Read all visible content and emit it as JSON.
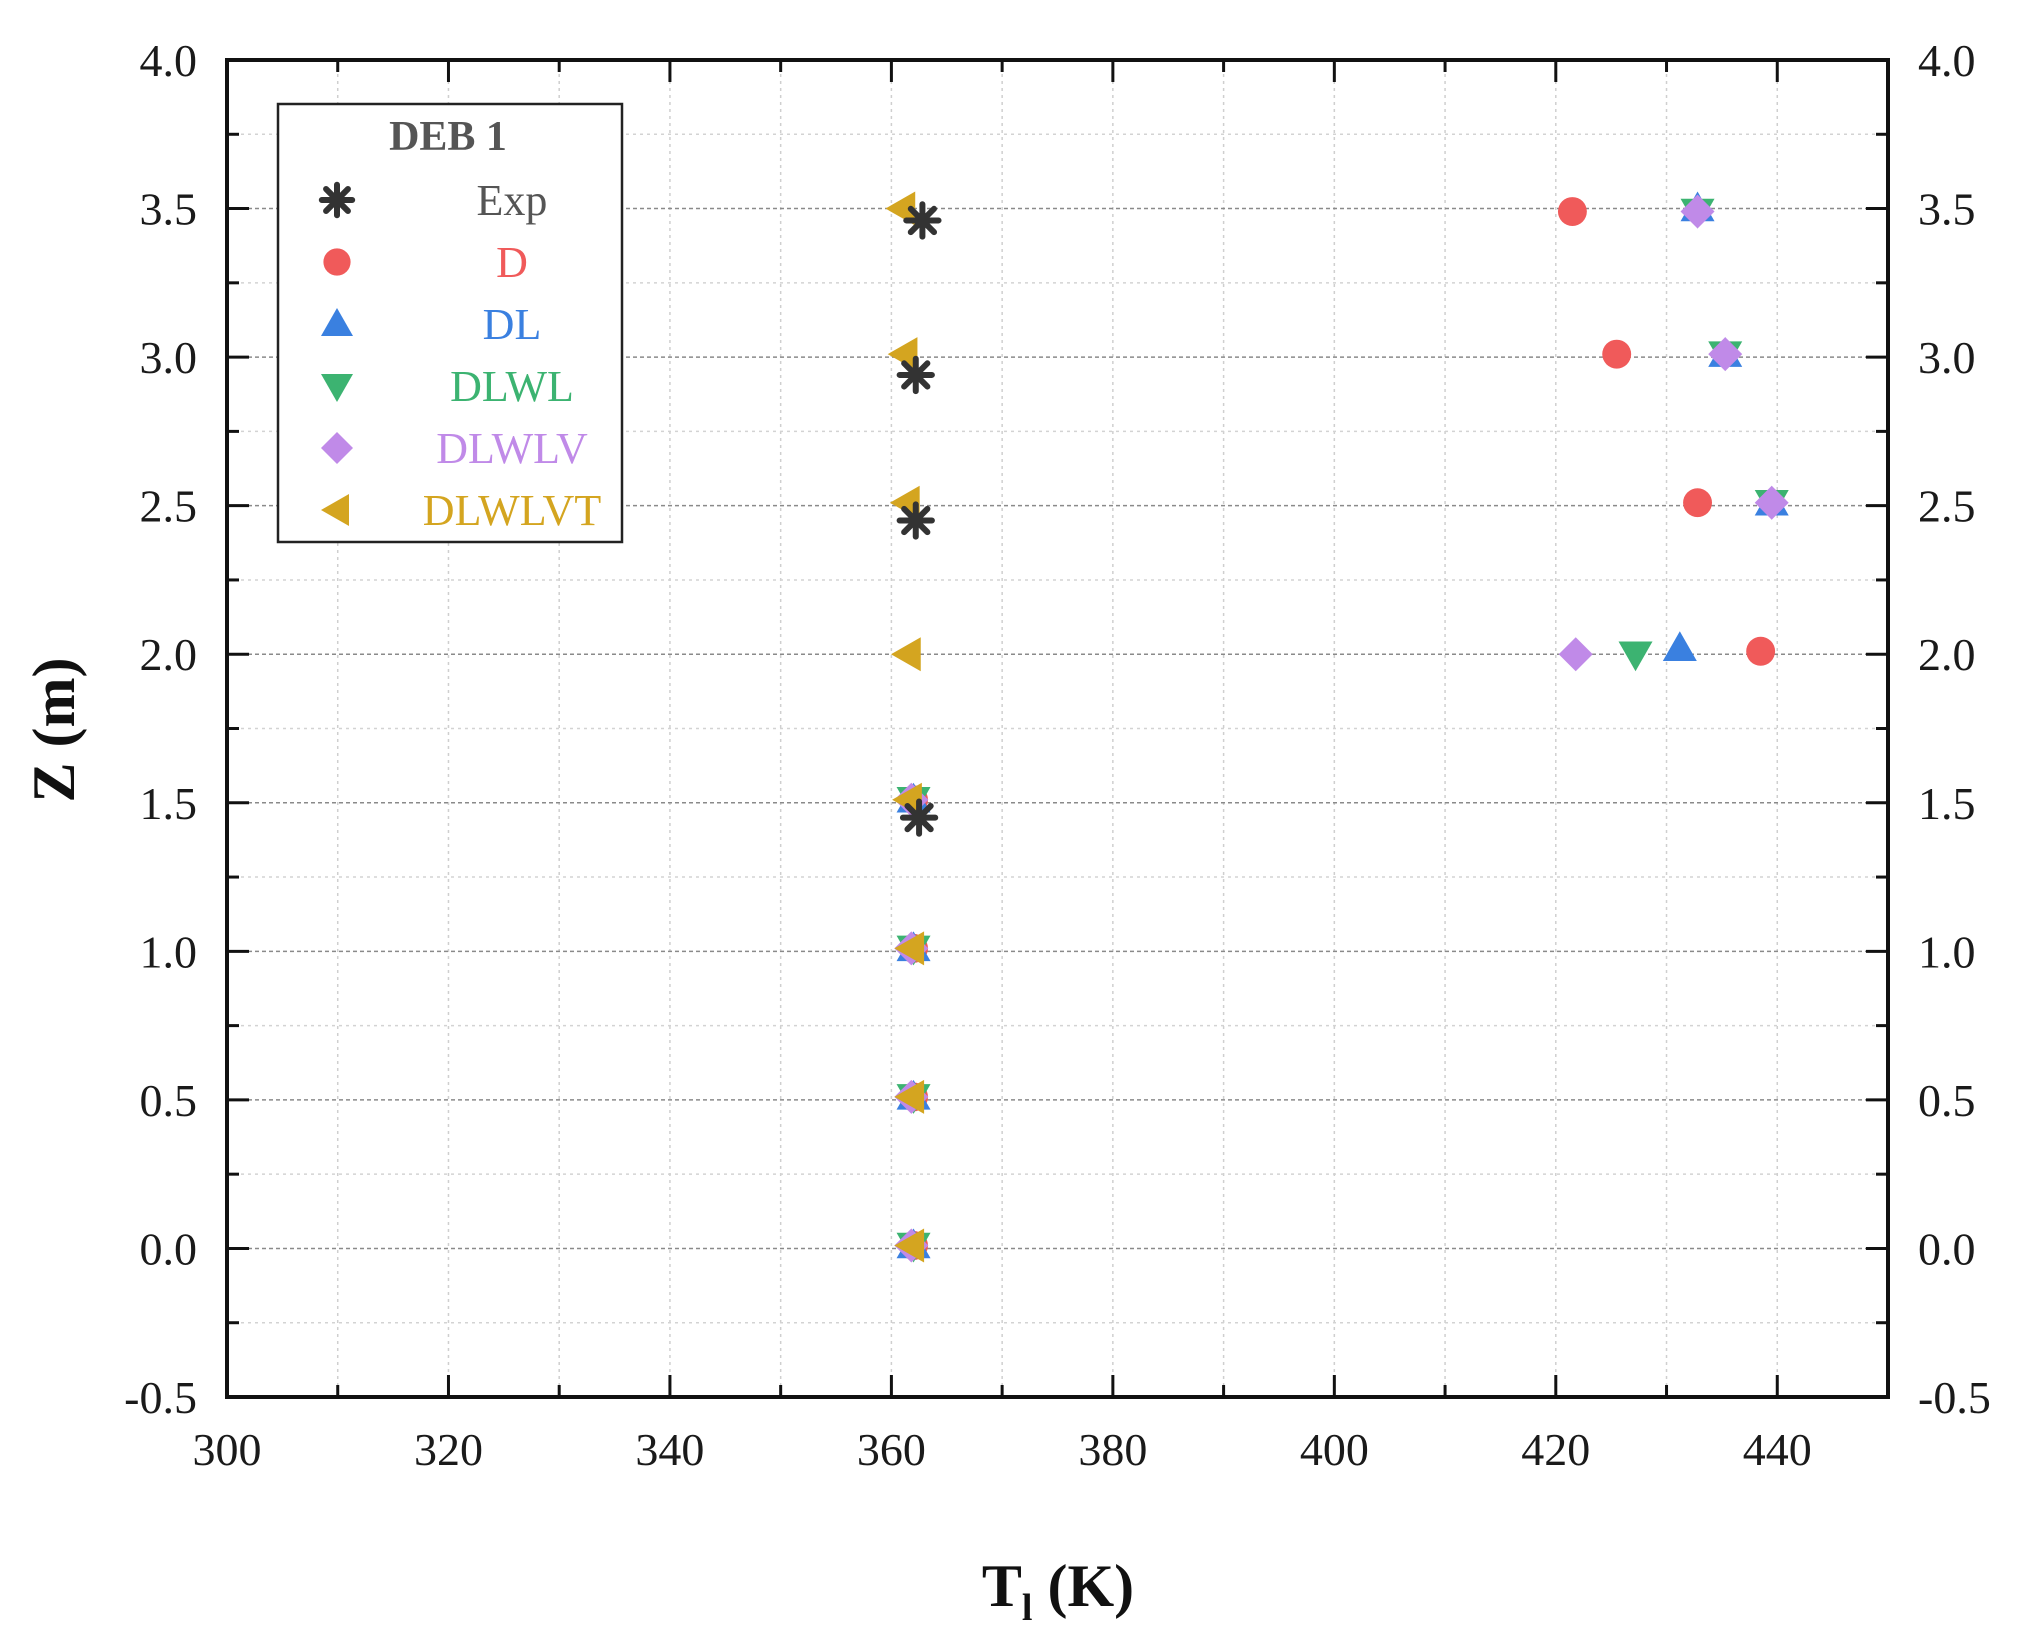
{
  "chart_data": {
    "type": "scatter",
    "title": "",
    "xlabel_main": "T",
    "xlabel_sub": "l",
    "xlabel_unit": " (K)",
    "ylabel": "Z (m)",
    "xlim": [
      300,
      450
    ],
    "ylim": [
      -0.5,
      4.0
    ],
    "x_ticks": [
      "300",
      "320",
      "340",
      "360",
      "380",
      "400",
      "420",
      "440"
    ],
    "x_tick_values": [
      300,
      320,
      340,
      360,
      380,
      400,
      420,
      440
    ],
    "y_ticks": [
      "-0.5",
      "0.0",
      "0.5",
      "1.0",
      "1.5",
      "2.0",
      "2.5",
      "3.0",
      "3.5",
      "4.0"
    ],
    "y_tick_values": [
      -0.5,
      0.0,
      0.5,
      1.0,
      1.5,
      2.0,
      2.5,
      3.0,
      3.5,
      4.0
    ],
    "grid": true,
    "legend_position": "top-left",
    "legend_title": "DEB 1",
    "series": [
      {
        "name": "Exp",
        "marker": "asterisk",
        "color": "#333333",
        "x": [
          362.8,
          362.2,
          362.2,
          362.5
        ],
        "y": [
          3.46,
          2.94,
          2.45,
          1.45
        ]
      },
      {
        "name": "D",
        "marker": "circle",
        "color": "#f05a5a",
        "x": [
          421.5,
          425.5,
          432.8,
          438.5,
          362.0,
          362.0,
          362.0,
          362.0
        ],
        "y": [
          3.49,
          3.01,
          2.51,
          2.01,
          1.51,
          1.01,
          0.51,
          0.01
        ]
      },
      {
        "name": "DL",
        "marker": "triangle-up",
        "color": "#3a80e0",
        "x": [
          432.8,
          435.3,
          439.5,
          431.2,
          362.0,
          362.0,
          362.0,
          362.0
        ],
        "y": [
          3.5,
          3.01,
          2.51,
          2.02,
          1.51,
          1.01,
          0.51,
          0.01
        ]
      },
      {
        "name": "DLWL",
        "marker": "triangle-down",
        "color": "#3cb371",
        "x": [
          432.8,
          435.3,
          439.5,
          427.2,
          362.0,
          362.0,
          362.0,
          362.0
        ],
        "y": [
          3.49,
          3.01,
          2.51,
          2.0,
          1.51,
          1.01,
          0.51,
          0.01
        ]
      },
      {
        "name": "DLWLV",
        "marker": "diamond",
        "color": "#c08ae8",
        "x": [
          432.8,
          435.3,
          439.5,
          421.8,
          361.8,
          361.8,
          361.8,
          361.8
        ],
        "y": [
          3.49,
          3.01,
          2.51,
          2.0,
          1.51,
          1.01,
          0.51,
          0.01
        ]
      },
      {
        "name": "DLWLVT",
        "marker": "triangle-left",
        "color": "#d4a520",
        "x": [
          361.0,
          361.2,
          361.4,
          361.5,
          361.6,
          361.8,
          361.8,
          361.8
        ],
        "y": [
          3.5,
          3.01,
          2.51,
          2.0,
          1.51,
          1.01,
          0.51,
          0.01
        ]
      }
    ]
  }
}
